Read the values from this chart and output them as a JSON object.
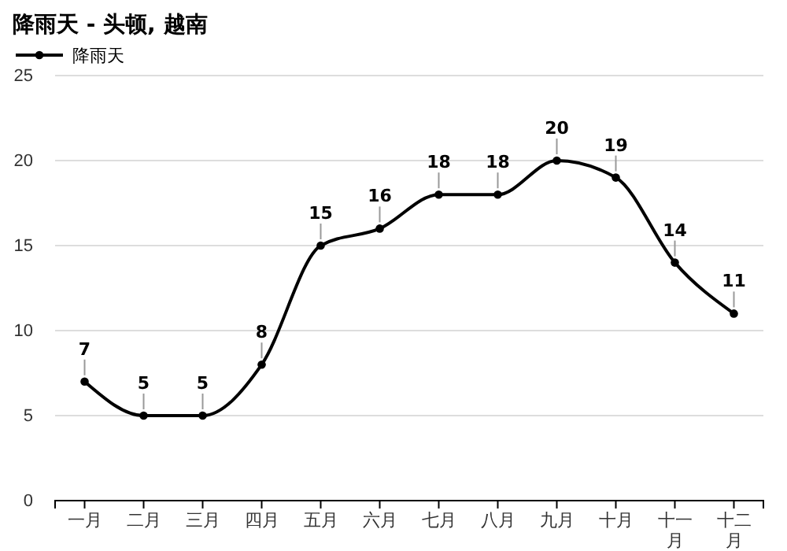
{
  "chart_data": {
    "type": "line",
    "title": "降雨天 - 头顿, 越南",
    "categories": [
      "一月",
      "二月",
      "三月",
      "四月",
      "五月",
      "六月",
      "七月",
      "八月",
      "九月",
      "十月",
      "十一月",
      "十二月"
    ],
    "series": [
      {
        "name": "降雨天",
        "color": "#000000",
        "values": [
          7,
          5,
          5,
          8,
          15,
          16,
          18,
          18,
          20,
          19,
          14,
          11
        ]
      }
    ],
    "ylim": [
      0,
      25
    ],
    "yticks": [
      0,
      5,
      10,
      15,
      20,
      25
    ],
    "grid": "y",
    "legend": "top left",
    "marker": "circle",
    "line_style": "solid",
    "data_labels": true
  }
}
